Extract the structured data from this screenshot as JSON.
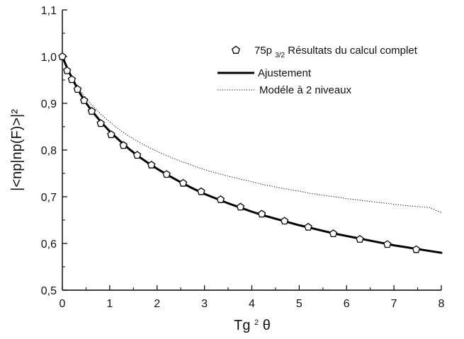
{
  "chart_data": {
    "type": "line",
    "xlabel": {
      "base": "Tg",
      "superscript": "2",
      "symbol": "θ"
    },
    "ylabel": "|<np|np(F)>|²",
    "xlim": [
      0,
      8
    ],
    "ylim": [
      0.5,
      1.1
    ],
    "x_ticks": [
      0,
      1,
      2,
      3,
      4,
      5,
      6,
      7,
      8
    ],
    "x_tick_labels": [
      "0",
      "1",
      "2",
      "3",
      "4",
      "5",
      "6",
      "7",
      "8"
    ],
    "y_ticks": [
      0.5,
      0.6,
      0.7,
      0.8,
      0.9,
      1.0,
      1.1
    ],
    "y_tick_labels": [
      "0,5",
      "0,6",
      "0,7",
      "0,8",
      "0,9",
      "1,0",
      "1,1"
    ],
    "grid": false,
    "legend_position": "top-right",
    "legend": [
      {
        "key": "calcul",
        "prefix": "75p",
        "subscript": "3/2",
        "suffix": " Résultats du calcul complet",
        "marker": "pentagon-open"
      },
      {
        "key": "ajustement",
        "label": "Ajustement",
        "line": "solid-thick"
      },
      {
        "key": "modele",
        "label": "Modéle à 2 niveaux",
        "line": "dotted"
      }
    ],
    "series": [
      {
        "key": "calcul",
        "style": "pentagon-open",
        "color": "#000000",
        "x": [
          0.0,
          0.1,
          0.2,
          0.32,
          0.46,
          0.62,
          0.81,
          1.03,
          1.29,
          1.58,
          1.88,
          2.2,
          2.55,
          2.93,
          3.34,
          3.76,
          4.21,
          4.69,
          5.19,
          5.72,
          6.28,
          6.86,
          7.47
        ],
        "y": [
          1.0,
          0.97,
          0.951,
          0.93,
          0.906,
          0.883,
          0.857,
          0.833,
          0.81,
          0.789,
          0.768,
          0.748,
          0.729,
          0.711,
          0.694,
          0.678,
          0.663,
          0.648,
          0.635,
          0.621,
          0.609,
          0.598,
          0.587
        ]
      },
      {
        "key": "ajustement",
        "style": "solid",
        "color": "#000000",
        "x": [
          0.0,
          0.1,
          0.2,
          0.3,
          0.4,
          0.5,
          0.6,
          0.8,
          1.0,
          1.2,
          1.4,
          1.6,
          1.8,
          2.0,
          2.25,
          2.5,
          2.75,
          3.0,
          3.25,
          3.5,
          3.75,
          4.0,
          4.25,
          4.5,
          4.75,
          5.0,
          5.25,
          5.5,
          5.75,
          6.0,
          6.25,
          6.5,
          6.75,
          7.0,
          7.25,
          7.5,
          7.75,
          8.0
        ],
        "y": [
          1.0,
          0.976,
          0.955,
          0.935,
          0.917,
          0.901,
          0.887,
          0.862,
          0.84,
          0.821,
          0.803,
          0.787,
          0.773,
          0.76,
          0.745,
          0.731,
          0.718,
          0.706,
          0.696,
          0.686,
          0.677,
          0.668,
          0.66,
          0.653,
          0.646,
          0.639,
          0.633,
          0.627,
          0.621,
          0.616,
          0.611,
          0.606,
          0.601,
          0.596,
          0.592,
          0.588,
          0.584,
          0.58
        ]
      },
      {
        "key": "modele",
        "style": "dotted",
        "color": "#000000",
        "x": [
          0.0,
          0.1,
          0.2,
          0.3,
          0.4,
          0.5,
          0.6,
          0.8,
          1.0,
          1.2,
          1.4,
          1.6,
          1.8,
          2.0,
          2.25,
          2.5,
          2.75,
          3.0,
          3.25,
          3.5,
          3.75,
          4.0,
          4.25,
          4.5,
          4.75,
          5.0,
          5.25,
          5.5,
          5.75,
          6.0,
          6.25,
          6.5,
          6.75,
          7.0,
          7.25,
          7.5,
          7.75,
          8.0
        ],
        "y": [
          1.0,
          0.976,
          0.956,
          0.94,
          0.925,
          0.911,
          0.899,
          0.878,
          0.86,
          0.844,
          0.83,
          0.818,
          0.807,
          0.797,
          0.786,
          0.776,
          0.767,
          0.758,
          0.751,
          0.744,
          0.738,
          0.732,
          0.726,
          0.721,
          0.716,
          0.712,
          0.707,
          0.703,
          0.7,
          0.696,
          0.693,
          0.69,
          0.687,
          0.684,
          0.681,
          0.679,
          0.677,
          0.666
        ]
      }
    ]
  }
}
